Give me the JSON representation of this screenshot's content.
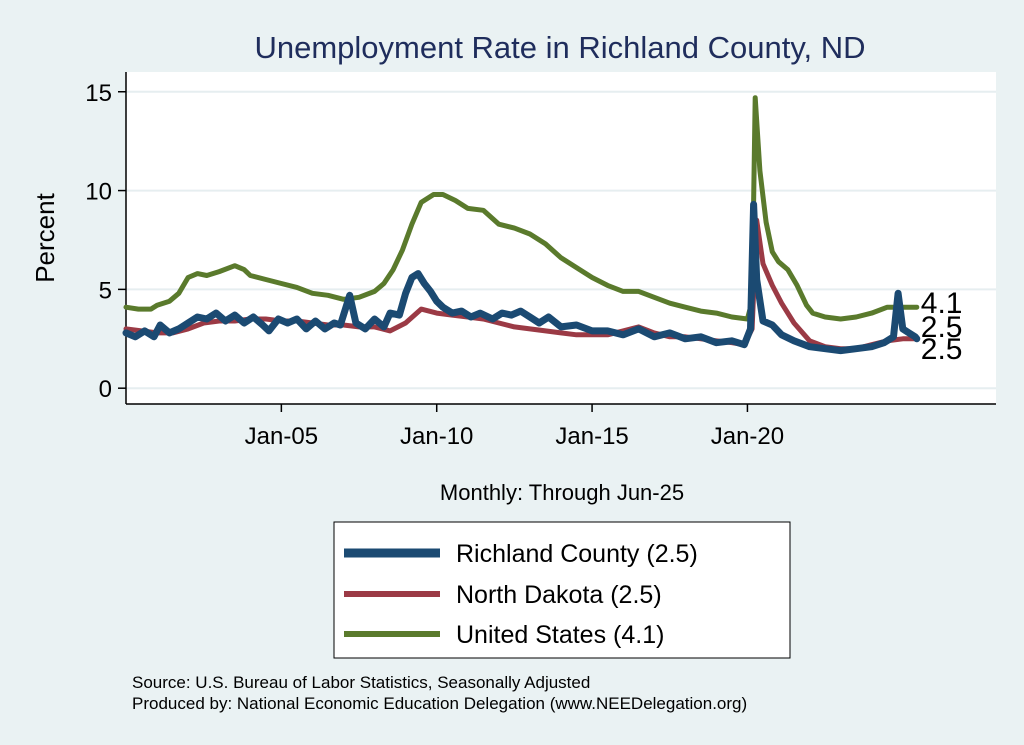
{
  "chart_data": {
    "type": "line",
    "title": "Unemployment Rate in Richland  County, ND",
    "ylabel": "Percent",
    "xlabel": "Monthly: Through Jun-25",
    "xlim": [
      2000.0,
      2028.0
    ],
    "ylim": [
      -0.8,
      16
    ],
    "yticks": [
      0,
      5,
      10,
      15
    ],
    "xticks": [
      {
        "label": "Jan-05",
        "value": 2005.0
      },
      {
        "label": "Jan-10",
        "value": 2010.0
      },
      {
        "label": "Jan-15",
        "value": 2015.0
      },
      {
        "label": "Jan-20",
        "value": 2020.0
      }
    ],
    "grid": true,
    "legend_position": "bottom",
    "series": [
      {
        "name": "Richland  County (2.5)",
        "legend_label": "Richland  County (2.5)",
        "color": "#1b4a72",
        "end_label": "2.5",
        "points": [
          [
            2000.0,
            2.8
          ],
          [
            2000.3,
            2.6
          ],
          [
            2000.6,
            2.9
          ],
          [
            2000.9,
            2.6
          ],
          [
            2001.1,
            3.2
          ],
          [
            2001.4,
            2.8
          ],
          [
            2001.7,
            3.0
          ],
          [
            2002.0,
            3.3
          ],
          [
            2002.3,
            3.6
          ],
          [
            2002.6,
            3.5
          ],
          [
            2002.9,
            3.8
          ],
          [
            2003.2,
            3.4
          ],
          [
            2003.5,
            3.7
          ],
          [
            2003.8,
            3.3
          ],
          [
            2004.1,
            3.6
          ],
          [
            2004.4,
            3.2
          ],
          [
            2004.6,
            2.9
          ],
          [
            2004.9,
            3.5
          ],
          [
            2005.2,
            3.3
          ],
          [
            2005.5,
            3.5
          ],
          [
            2005.8,
            3.0
          ],
          [
            2006.1,
            3.4
          ],
          [
            2006.4,
            3.0
          ],
          [
            2006.7,
            3.3
          ],
          [
            2006.9,
            3.2
          ],
          [
            2007.2,
            4.7
          ],
          [
            2007.4,
            3.3
          ],
          [
            2007.7,
            3.0
          ],
          [
            2008.0,
            3.5
          ],
          [
            2008.3,
            3.1
          ],
          [
            2008.5,
            3.8
          ],
          [
            2008.8,
            3.7
          ],
          [
            2009.0,
            4.8
          ],
          [
            2009.2,
            5.6
          ],
          [
            2009.4,
            5.8
          ],
          [
            2009.6,
            5.3
          ],
          [
            2009.8,
            4.9
          ],
          [
            2010.0,
            4.4
          ],
          [
            2010.2,
            4.1
          ],
          [
            2010.5,
            3.8
          ],
          [
            2010.8,
            3.9
          ],
          [
            2011.1,
            3.6
          ],
          [
            2011.4,
            3.8
          ],
          [
            2011.8,
            3.5
          ],
          [
            2012.1,
            3.8
          ],
          [
            2012.4,
            3.7
          ],
          [
            2012.7,
            3.9
          ],
          [
            2013.0,
            3.6
          ],
          [
            2013.3,
            3.3
          ],
          [
            2013.6,
            3.6
          ],
          [
            2014.0,
            3.1
          ],
          [
            2014.5,
            3.2
          ],
          [
            2015.0,
            2.9
          ],
          [
            2015.5,
            2.9
          ],
          [
            2016.0,
            2.7
          ],
          [
            2016.5,
            3.0
          ],
          [
            2017.0,
            2.6
          ],
          [
            2017.5,
            2.8
          ],
          [
            2018.0,
            2.5
          ],
          [
            2018.5,
            2.6
          ],
          [
            2019.0,
            2.3
          ],
          [
            2019.5,
            2.4
          ],
          [
            2019.9,
            2.2
          ],
          [
            2020.1,
            3.0
          ],
          [
            2020.2,
            9.3
          ],
          [
            2020.3,
            5.5
          ],
          [
            2020.5,
            3.4
          ],
          [
            2020.8,
            3.2
          ],
          [
            2021.1,
            2.7
          ],
          [
            2021.5,
            2.4
          ],
          [
            2022.0,
            2.1
          ],
          [
            2022.5,
            2.0
          ],
          [
            2023.0,
            1.9
          ],
          [
            2023.5,
            2.0
          ],
          [
            2024.0,
            2.1
          ],
          [
            2024.4,
            2.3
          ],
          [
            2024.7,
            2.6
          ],
          [
            2024.85,
            4.8
          ],
          [
            2025.0,
            3.0
          ],
          [
            2025.2,
            2.8
          ],
          [
            2025.4,
            2.6
          ],
          [
            2025.45,
            2.5
          ]
        ]
      },
      {
        "name": "North Dakota (2.5)",
        "legend_label": "North Dakota (2.5)",
        "color": "#9b3a45",
        "end_label": "2.5",
        "points": [
          [
            2000.0,
            3.0
          ],
          [
            2000.5,
            2.9
          ],
          [
            2001.0,
            2.8
          ],
          [
            2001.5,
            2.8
          ],
          [
            2002.0,
            3.0
          ],
          [
            2002.5,
            3.3
          ],
          [
            2003.0,
            3.4
          ],
          [
            2003.5,
            3.4
          ],
          [
            2004.0,
            3.5
          ],
          [
            2004.5,
            3.5
          ],
          [
            2005.0,
            3.4
          ],
          [
            2005.5,
            3.4
          ],
          [
            2006.0,
            3.3
          ],
          [
            2006.5,
            3.2
          ],
          [
            2007.0,
            3.2
          ],
          [
            2007.5,
            3.1
          ],
          [
            2008.0,
            3.1
          ],
          [
            2008.5,
            2.9
          ],
          [
            2009.0,
            3.3
          ],
          [
            2009.5,
            4.0
          ],
          [
            2010.0,
            3.8
          ],
          [
            2010.5,
            3.7
          ],
          [
            2011.0,
            3.6
          ],
          [
            2011.5,
            3.5
          ],
          [
            2012.0,
            3.3
          ],
          [
            2012.5,
            3.1
          ],
          [
            2013.0,
            3.0
          ],
          [
            2013.5,
            2.9
          ],
          [
            2014.0,
            2.8
          ],
          [
            2014.5,
            2.7
          ],
          [
            2015.0,
            2.7
          ],
          [
            2015.5,
            2.7
          ],
          [
            2016.0,
            2.9
          ],
          [
            2016.5,
            3.1
          ],
          [
            2017.0,
            2.8
          ],
          [
            2017.5,
            2.6
          ],
          [
            2018.0,
            2.6
          ],
          [
            2018.5,
            2.5
          ],
          [
            2019.0,
            2.4
          ],
          [
            2019.5,
            2.3
          ],
          [
            2019.9,
            2.2
          ],
          [
            2020.15,
            3.0
          ],
          [
            2020.3,
            8.5
          ],
          [
            2020.5,
            6.3
          ],
          [
            2020.8,
            5.2
          ],
          [
            2021.1,
            4.3
          ],
          [
            2021.5,
            3.3
          ],
          [
            2022.0,
            2.4
          ],
          [
            2022.5,
            2.1
          ],
          [
            2023.0,
            2.0
          ],
          [
            2023.5,
            2.0
          ],
          [
            2024.0,
            2.2
          ],
          [
            2024.5,
            2.4
          ],
          [
            2025.0,
            2.5
          ],
          [
            2025.45,
            2.5
          ]
        ]
      },
      {
        "name": "United States (4.1)",
        "legend_label": "United States (4.1)",
        "color": "#5a7a2c",
        "end_label": "4.1",
        "points": [
          [
            2000.0,
            4.1
          ],
          [
            2000.4,
            4.0
          ],
          [
            2000.8,
            4.0
          ],
          [
            2001.0,
            4.2
          ],
          [
            2001.4,
            4.4
          ],
          [
            2001.7,
            4.8
          ],
          [
            2002.0,
            5.6
          ],
          [
            2002.3,
            5.8
          ],
          [
            2002.6,
            5.7
          ],
          [
            2003.0,
            5.9
          ],
          [
            2003.5,
            6.2
          ],
          [
            2003.8,
            6.0
          ],
          [
            2004.0,
            5.7
          ],
          [
            2004.5,
            5.5
          ],
          [
            2005.0,
            5.3
          ],
          [
            2005.5,
            5.1
          ],
          [
            2006.0,
            4.8
          ],
          [
            2006.5,
            4.7
          ],
          [
            2007.0,
            4.5
          ],
          [
            2007.5,
            4.6
          ],
          [
            2008.0,
            4.9
          ],
          [
            2008.3,
            5.3
          ],
          [
            2008.6,
            6.0
          ],
          [
            2008.9,
            7.0
          ],
          [
            2009.2,
            8.3
          ],
          [
            2009.5,
            9.4
          ],
          [
            2009.9,
            9.8
          ],
          [
            2010.2,
            9.8
          ],
          [
            2010.6,
            9.5
          ],
          [
            2011.0,
            9.1
          ],
          [
            2011.5,
            9.0
          ],
          [
            2012.0,
            8.3
          ],
          [
            2012.5,
            8.1
          ],
          [
            2013.0,
            7.8
          ],
          [
            2013.5,
            7.3
          ],
          [
            2014.0,
            6.6
          ],
          [
            2014.5,
            6.1
          ],
          [
            2015.0,
            5.6
          ],
          [
            2015.5,
            5.2
          ],
          [
            2016.0,
            4.9
          ],
          [
            2016.5,
            4.9
          ],
          [
            2017.0,
            4.6
          ],
          [
            2017.5,
            4.3
          ],
          [
            2018.0,
            4.1
          ],
          [
            2018.5,
            3.9
          ],
          [
            2019.0,
            3.8
          ],
          [
            2019.5,
            3.6
          ],
          [
            2020.0,
            3.5
          ],
          [
            2020.15,
            4.4
          ],
          [
            2020.25,
            14.7
          ],
          [
            2020.4,
            11.0
          ],
          [
            2020.6,
            8.4
          ],
          [
            2020.8,
            6.9
          ],
          [
            2021.0,
            6.4
          ],
          [
            2021.3,
            6.0
          ],
          [
            2021.6,
            5.2
          ],
          [
            2021.9,
            4.2
          ],
          [
            2022.1,
            3.8
          ],
          [
            2022.5,
            3.6
          ],
          [
            2023.0,
            3.5
          ],
          [
            2023.5,
            3.6
          ],
          [
            2024.0,
            3.8
          ],
          [
            2024.5,
            4.1
          ],
          [
            2025.0,
            4.1
          ],
          [
            2025.45,
            4.1
          ]
        ]
      }
    ],
    "source_note": "Source: U.S. Bureau of Labor Statistics, Seasonally Adjusted",
    "producer_note": "Produced by: National Economic Education Delegation (www.NEEDelegation.org)"
  }
}
